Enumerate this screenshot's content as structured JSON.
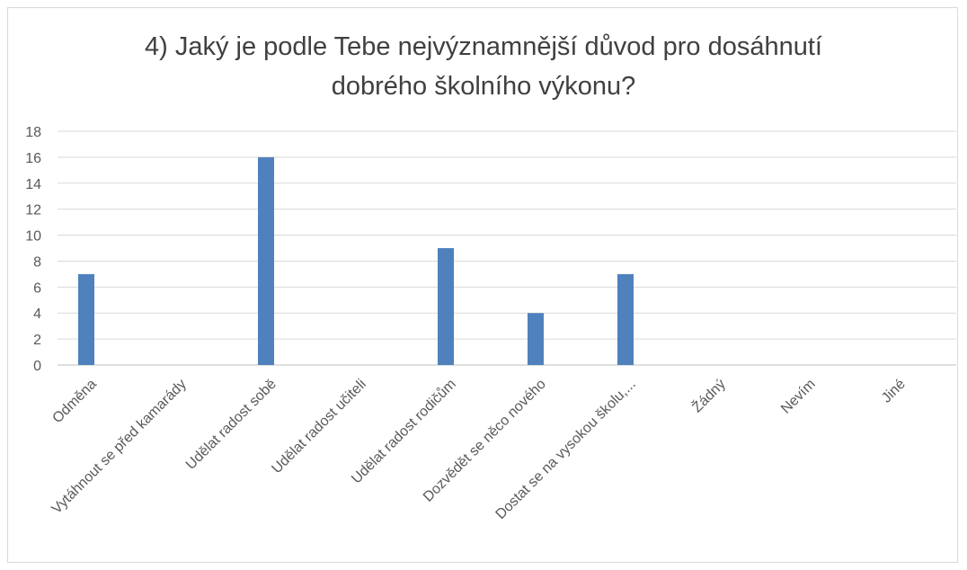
{
  "chart_data": {
    "type": "bar",
    "title_lines": [
      "4) Jaký je podle Tebe nejvýznamnější důvod pro dosáhnutí",
      "dobrého školního výkonu?"
    ],
    "categories": [
      "Odměna",
      "Vytáhnout se před kamarády",
      "Udělat radost sobě",
      "Udělat radost učiteli",
      "Udělat radost rodičům",
      "Dozvědět se něco nového",
      "Dostat se na vysokou školu,...",
      "Žádný",
      "Nevím",
      "Jiné"
    ],
    "values": [
      7,
      0,
      16,
      0,
      9,
      4,
      7,
      0,
      0,
      0
    ],
    "ylim": [
      0,
      18
    ],
    "yticks": [
      "0",
      "2",
      "4",
      "6",
      "8",
      "10",
      "12",
      "14",
      "16",
      "18"
    ],
    "grid": true,
    "legend": "none",
    "colors": {
      "bar": "#4f81bd",
      "grid": "#d9d9d9",
      "axis": "#bfbfbf",
      "text": "#595959"
    }
  }
}
